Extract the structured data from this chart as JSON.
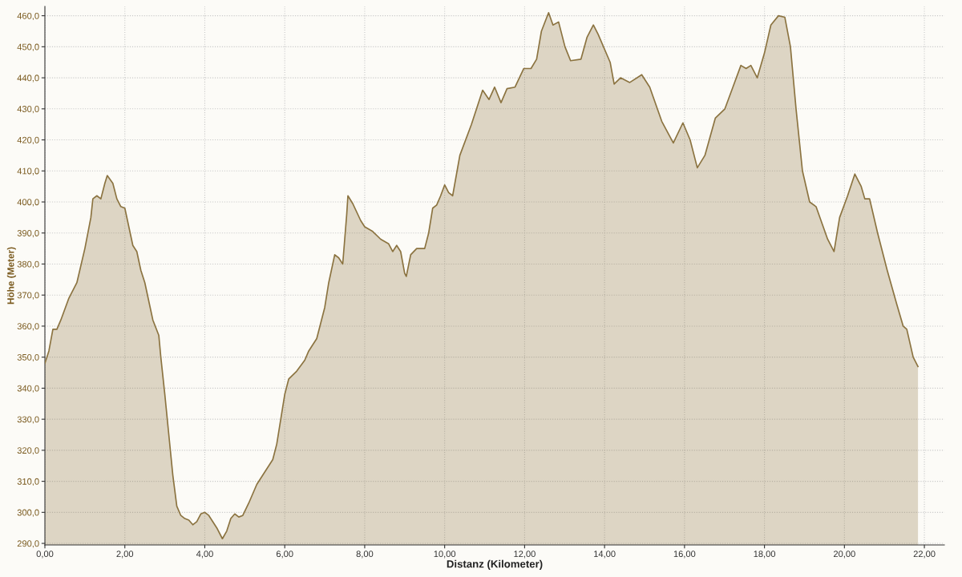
{
  "chart_data": {
    "type": "area",
    "xlabel": "Distanz (Kilometer)",
    "ylabel": "Höhe (Meter)",
    "series": [
      {
        "color": "#8b7340",
        "x": [
          0,
          0.1,
          0.2,
          0.3,
          0.4,
          0.6,
          0.8,
          1.0,
          1.15,
          1.2,
          1.3,
          1.4,
          1.5,
          1.56,
          1.7,
          1.8,
          1.9,
          2.0,
          2.1,
          2.2,
          2.3,
          2.4,
          2.5,
          2.6,
          2.7,
          2.85,
          2.9,
          3.0,
          3.1,
          3.2,
          3.3,
          3.4,
          3.5,
          3.6,
          3.7,
          3.8,
          3.9,
          4.0,
          4.1,
          4.2,
          4.3,
          4.44,
          4.55,
          4.65,
          4.75,
          4.85,
          4.95,
          5.1,
          5.3,
          5.5,
          5.7,
          5.8,
          5.9,
          6.0,
          6.1,
          6.3,
          6.5,
          6.6,
          6.8,
          7.0,
          7.1,
          7.25,
          7.35,
          7.45,
          7.55,
          7.58,
          7.7,
          7.9,
          8.0,
          8.2,
          8.4,
          8.6,
          8.7,
          8.8,
          8.9,
          9.0,
          9.04,
          9.15,
          9.3,
          9.5,
          9.6,
          9.7,
          9.8,
          9.9,
          10.0,
          10.1,
          10.2,
          10.38,
          10.67,
          10.95,
          11.11,
          11.25,
          11.41,
          11.56,
          11.76,
          11.98,
          12.16,
          12.3,
          12.42,
          12.6,
          12.71,
          12.85,
          13.01,
          13.15,
          13.41,
          13.56,
          13.72,
          13.84,
          14.14,
          14.24,
          14.4,
          14.63,
          14.93,
          15.13,
          15.43,
          15.72,
          15.96,
          16.14,
          16.32,
          16.51,
          16.77,
          17.01,
          17.21,
          17.41,
          17.54,
          17.66,
          17.82,
          18.0,
          18.16,
          18.35,
          18.51,
          18.65,
          18.79,
          18.95,
          19.13,
          19.29,
          19.58,
          19.74,
          19.88,
          20.08,
          20.26,
          20.42,
          20.51,
          20.63,
          20.83,
          21.07,
          21.31,
          21.47,
          21.56,
          21.72,
          21.84
        ],
        "values": [
          348,
          352,
          359,
          359,
          362,
          369,
          374,
          385,
          395,
          401,
          402,
          401,
          406,
          408.5,
          406,
          401,
          398.5,
          398,
          392,
          386,
          384,
          378,
          374,
          368,
          362,
          357,
          350,
          338,
          325,
          312,
          302,
          299,
          298,
          297.5,
          296,
          297,
          299.5,
          300,
          299,
          297,
          295,
          291.5,
          294,
          298,
          299.5,
          298.5,
          299,
          303,
          309,
          313,
          317,
          322,
          330,
          338,
          343,
          345.5,
          349,
          352,
          356,
          366,
          374,
          383,
          382,
          380,
          396,
          402,
          399.5,
          394,
          392,
          390.5,
          388,
          386.5,
          384,
          386,
          384,
          377,
          376,
          383,
          385,
          385,
          390,
          398,
          399,
          402,
          405.5,
          403,
          402,
          415,
          425,
          436,
          433,
          437,
          432,
          436.5,
          437,
          443,
          443,
          446,
          455,
          461,
          457,
          458,
          450,
          445.5,
          446,
          453,
          457,
          454,
          445,
          438,
          440,
          438.5,
          441,
          437,
          426,
          419,
          425.5,
          420,
          411,
          415,
          427,
          430,
          437,
          444,
          443,
          444,
          440,
          448,
          457,
          460,
          459.5,
          450,
          430,
          410,
          400,
          398.5,
          388,
          384,
          395,
          402,
          409,
          405,
          401,
          401,
          390,
          378,
          367,
          360,
          359,
          350,
          347
        ]
      }
    ],
    "xlim": [
      0,
      22.5
    ],
    "ylim": [
      289.5,
      463
    ],
    "xticks": [
      {
        "value": 0,
        "label": "0,00"
      },
      {
        "value": 2,
        "label": "2,00"
      },
      {
        "value": 4,
        "label": "4,00"
      },
      {
        "value": 6,
        "label": "6,00"
      },
      {
        "value": 8,
        "label": "8,00"
      },
      {
        "value": 10,
        "label": "10,00"
      },
      {
        "value": 12,
        "label": "12,00"
      },
      {
        "value": 14,
        "label": "14,00"
      },
      {
        "value": 16,
        "label": "16,00"
      },
      {
        "value": 18,
        "label": "18,00"
      },
      {
        "value": 20,
        "label": "20,00"
      },
      {
        "value": 22,
        "label": "22,00"
      }
    ],
    "yticks": [
      {
        "value": 290,
        "label": "290,0"
      },
      {
        "value": 300,
        "label": "300,0"
      },
      {
        "value": 310,
        "label": "310,0"
      },
      {
        "value": 320,
        "label": "320,0"
      },
      {
        "value": 330,
        "label": "330,0"
      },
      {
        "value": 340,
        "label": "340,0"
      },
      {
        "value": 350,
        "label": "350,0"
      },
      {
        "value": 360,
        "label": "360,0"
      },
      {
        "value": 370,
        "label": "370,0"
      },
      {
        "value": 380,
        "label": "380,0"
      },
      {
        "value": 390,
        "label": "390,0"
      },
      {
        "value": 400,
        "label": "400,0"
      },
      {
        "value": 410,
        "label": "410,0"
      },
      {
        "value": 420,
        "label": "420,0"
      },
      {
        "value": 430,
        "label": "430,0"
      },
      {
        "value": 440,
        "label": "440,0"
      },
      {
        "value": 450,
        "label": "450,0"
      },
      {
        "value": 460,
        "label": "460,0"
      }
    ],
    "grid": true
  }
}
